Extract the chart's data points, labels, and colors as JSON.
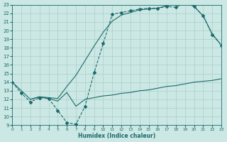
{
  "bg_color": "#cce8e4",
  "grid_color": "#aaceca",
  "line_color": "#1a6b6b",
  "xlim": [
    0,
    23
  ],
  "ylim": [
    9,
    23
  ],
  "xticks": [
    0,
    1,
    2,
    3,
    4,
    5,
    6,
    7,
    8,
    9,
    10,
    11,
    12,
    13,
    14,
    15,
    16,
    17,
    18,
    19,
    20,
    21,
    22,
    23
  ],
  "yticks": [
    9,
    10,
    11,
    12,
    13,
    14,
    15,
    16,
    17,
    18,
    19,
    20,
    21,
    22,
    23
  ],
  "xlabel": "Humidex (Indice chaleur)",
  "curve1_x": [
    0,
    1,
    2,
    3,
    4,
    5,
    6,
    7,
    8,
    9,
    10,
    11,
    12,
    13,
    14,
    15,
    16,
    17,
    18,
    19,
    20,
    21,
    22,
    23
  ],
  "curve1_y": [
    14.0,
    12.7,
    11.7,
    12.2,
    12.1,
    10.7,
    9.3,
    9.1,
    11.2,
    15.1,
    18.5,
    21.9,
    22.1,
    22.3,
    22.5,
    22.6,
    22.6,
    22.8,
    22.7,
    23.3,
    22.8,
    21.7,
    19.5,
    18.3
  ],
  "curve2_x": [
    0,
    2,
    3,
    5,
    6,
    7,
    8,
    9,
    10,
    11,
    12,
    13,
    14,
    15,
    16,
    17,
    18,
    19,
    20,
    21,
    22,
    23
  ],
  "curve2_y": [
    14.0,
    12.0,
    12.3,
    12.1,
    13.5,
    14.8,
    16.5,
    18.2,
    19.8,
    21.1,
    21.8,
    22.1,
    22.4,
    22.5,
    22.6,
    22.9,
    23.0,
    23.3,
    22.8,
    21.7,
    19.6,
    18.3
  ],
  "curve3_x": [
    2,
    3,
    4,
    5,
    6,
    7,
    8,
    9,
    10,
    11,
    12,
    13,
    14,
    15,
    16,
    17,
    18,
    19,
    20,
    21,
    22,
    23
  ],
  "curve3_y": [
    12.0,
    12.3,
    12.1,
    11.8,
    12.8,
    11.2,
    12.0,
    12.2,
    12.4,
    12.5,
    12.7,
    12.8,
    13.0,
    13.1,
    13.3,
    13.5,
    13.6,
    13.8,
    14.0,
    14.1,
    14.2,
    14.4
  ]
}
